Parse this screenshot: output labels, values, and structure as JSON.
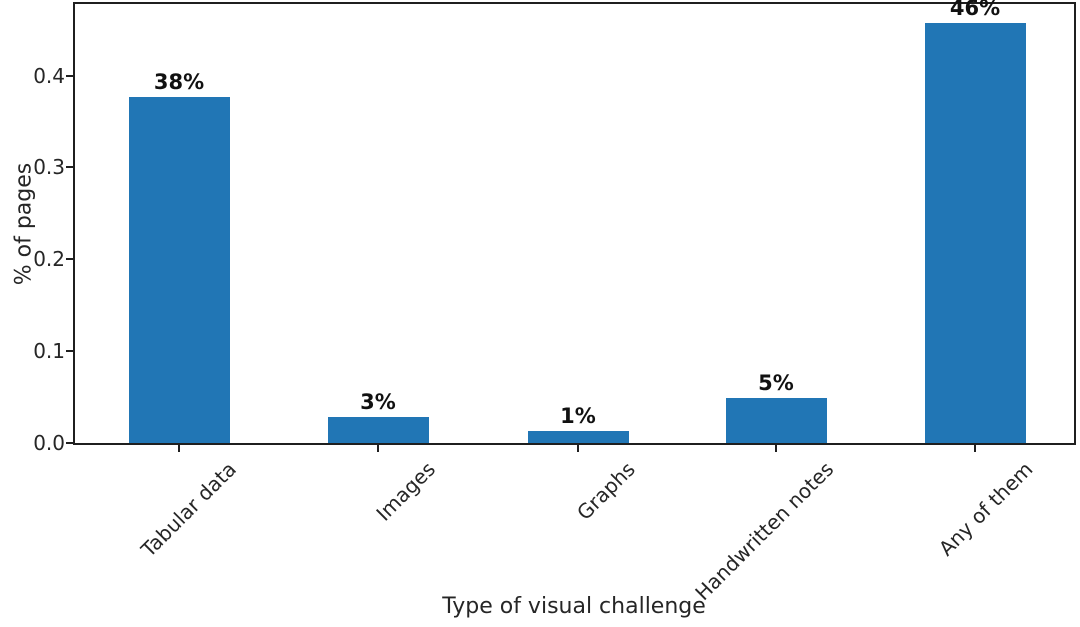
{
  "chart_data": {
    "type": "bar",
    "xlabel": "Type of visual challenge",
    "ylabel": "% of pages",
    "categories": [
      "Tabular data",
      "Images",
      "Graphs",
      "Handwritten notes",
      "Any of them"
    ],
    "values": [
      0.377,
      0.028,
      0.013,
      0.049,
      0.457
    ],
    "bar_labels": [
      "38%",
      "3%",
      "1%",
      "5%",
      "46%"
    ],
    "yticks": [
      0,
      0.1,
      0.2,
      0.3,
      0.4
    ],
    "ytick_labels": [
      "0.0",
      "0.1",
      "0.2",
      "0.3",
      "0.4"
    ],
    "ylim": [
      0,
      0.478
    ],
    "grid": false,
    "legend": null,
    "bar_color": "#2176b5",
    "axis_color": "#1f1f1f",
    "label_color": "#111111"
  }
}
